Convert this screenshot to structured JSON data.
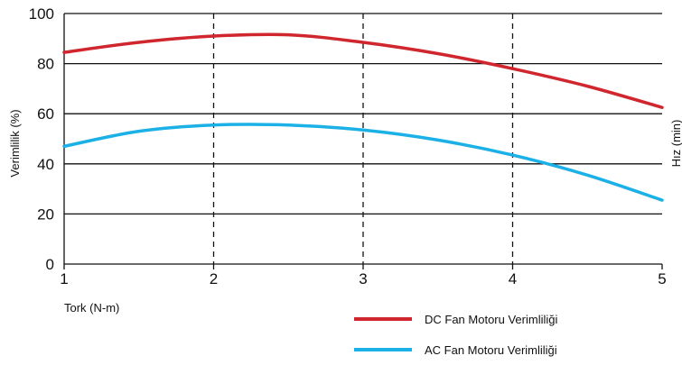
{
  "chart_data": {
    "type": "line",
    "xlabel": "Tork (N-m)",
    "ylabel": "Verimlilik (%)",
    "y2label": "Hız (min)",
    "xlim": [
      1,
      5
    ],
    "ylim": [
      0,
      100
    ],
    "x_ticks": [
      1,
      2,
      3,
      4,
      5
    ],
    "y_ticks": [
      0,
      20,
      40,
      60,
      80,
      100
    ],
    "grid": {
      "horizontal": "solid",
      "vertical": "dashed"
    },
    "legend_position": "bottom-right",
    "series": [
      {
        "name": "DC Fan Motoru Verimliliği",
        "color": "#d0262e",
        "x": [
          1.0,
          1.5,
          2.0,
          2.5,
          3.0,
          3.5,
          4.0,
          4.5,
          5.0
        ],
        "y": [
          84.5,
          88.5,
          91.0,
          91.5,
          88.5,
          84.0,
          78.0,
          71.0,
          62.5
        ]
      },
      {
        "name": "AC Fan Motoru Verimliliği",
        "color": "#1bb0e6",
        "x": [
          1.0,
          1.5,
          2.0,
          2.5,
          3.0,
          3.5,
          4.0,
          4.5,
          5.0
        ],
        "y": [
          47.0,
          53.0,
          55.5,
          55.5,
          53.5,
          49.5,
          43.5,
          35.5,
          25.5
        ]
      }
    ]
  }
}
